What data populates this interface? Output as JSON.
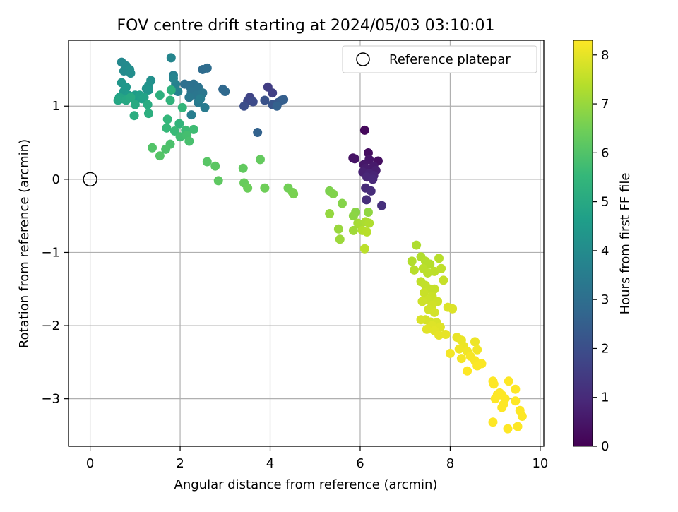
{
  "chart_data": {
    "type": "scatter",
    "title": "FOV centre drift starting at 2024/05/03 03:10:01",
    "xlabel": "Angular distance from reference (arcmin)",
    "ylabel": "Rotation from reference (arcmin)",
    "xlim": [
      -0.48,
      10.08
    ],
    "ylim": [
      -3.65,
      1.9
    ],
    "xticks": [
      0,
      2,
      4,
      6,
      8,
      10
    ],
    "xtick_labels": [
      "0",
      "2",
      "4",
      "6",
      "8",
      "10"
    ],
    "yticks": [
      1,
      0,
      -1,
      -2,
      -3
    ],
    "ytick_labels": [
      "1",
      "0",
      "−1",
      "−2",
      "−3"
    ],
    "grid": true,
    "legend": {
      "position": "top-right",
      "entries": [
        {
          "label": "Reference platepar",
          "marker": "open-circle"
        }
      ]
    },
    "reference_point": {
      "x": 0,
      "y": 0
    },
    "colorbar": {
      "label": "Hours from first FF file",
      "colormap": "viridis",
      "range": [
        0,
        8.3
      ],
      "ticks": [
        0,
        1,
        2,
        3,
        4,
        5,
        6,
        7,
        8
      ],
      "tick_labels": [
        "0",
        "1",
        "2",
        "3",
        "4",
        "5",
        "6",
        "7",
        "8"
      ],
      "stops": [
        "#440154",
        "#482878",
        "#3e4989",
        "#31688e",
        "#26828e",
        "#1f9e89",
        "#35b779",
        "#6ece58",
        "#b5de2b",
        "#fde725"
      ]
    },
    "series": [
      {
        "points": [
          [
            6.1,
            0.67
          ],
          [
            6.18,
            0.36
          ],
          [
            6.4,
            0.25
          ],
          [
            5.84,
            0.29
          ],
          [
            5.88,
            0.28
          ],
          [
            6.2,
            0.27
          ],
          [
            6.08,
            0.2
          ],
          [
            6.3,
            0.18
          ],
          [
            6.12,
            0.15
          ],
          [
            6.35,
            0.12
          ],
          [
            6.06,
            0.1
          ],
          [
            6.2,
            0.08
          ],
          [
            6.3,
            0.05
          ],
          [
            6.15,
            0.03
          ],
          [
            6.28,
            0.0
          ],
          [
            6.12,
            -0.12
          ],
          [
            6.24,
            -0.16
          ],
          [
            6.14,
            -0.28
          ],
          [
            6.48,
            -0.36
          ]
        ],
        "hours": [
          0.2,
          0.3,
          0.35,
          0.4,
          0.45,
          0.5,
          0.55,
          0.6,
          0.65,
          0.7,
          0.75,
          0.8,
          0.85,
          0.9,
          0.95,
          1.0,
          1.05,
          1.1,
          1.15
        ]
      },
      {
        "points": [
          [
            3.95,
            1.26
          ],
          [
            4.05,
            1.18
          ],
          [
            3.55,
            1.12
          ],
          [
            3.5,
            1.07
          ],
          [
            3.62,
            1.06
          ],
          [
            3.42,
            1.0
          ],
          [
            3.88,
            1.08
          ],
          [
            4.05,
            1.02
          ],
          [
            4.18,
            1.05
          ],
          [
            4.25,
            1.08
          ],
          [
            4.3,
            1.09
          ],
          [
            4.15,
            1.0
          ],
          [
            3.72,
            0.64
          ]
        ],
        "hours": [
          1.5,
          1.6,
          1.7,
          1.8,
          1.9,
          2.0,
          2.1,
          2.2,
          2.3,
          2.4,
          2.5,
          2.55,
          2.6
        ]
      },
      {
        "points": [
          [
            2.95,
            1.23
          ],
          [
            3.0,
            1.2
          ],
          [
            2.5,
            1.5
          ],
          [
            2.6,
            1.52
          ],
          [
            2.1,
            1.3
          ],
          [
            2.2,
            1.28
          ],
          [
            2.3,
            1.3
          ],
          [
            2.4,
            1.26
          ],
          [
            2.25,
            1.2
          ],
          [
            2.35,
            1.15
          ],
          [
            2.5,
            1.18
          ],
          [
            2.2,
            1.12
          ],
          [
            2.4,
            1.05
          ],
          [
            2.55,
            0.98
          ],
          [
            2.45,
            1.1
          ],
          [
            2.25,
            0.88
          ],
          [
            1.85,
            1.42
          ],
          [
            1.9,
            1.3
          ],
          [
            1.95,
            1.2
          ],
          [
            1.85,
            1.38
          ],
          [
            1.8,
            1.66
          ]
        ],
        "hours": [
          2.8,
          2.85,
          2.9,
          2.95,
          3.0,
          3.05,
          3.1,
          3.15,
          3.2,
          3.25,
          3.3,
          3.35,
          3.4,
          3.45,
          3.5,
          3.55,
          3.6,
          3.65,
          3.7,
          3.75,
          3.8
        ]
      },
      {
        "points": [
          [
            0.7,
            1.6
          ],
          [
            0.8,
            1.55
          ],
          [
            0.75,
            1.48
          ],
          [
            0.88,
            1.5
          ],
          [
            0.9,
            1.45
          ],
          [
            1.35,
            1.35
          ],
          [
            1.3,
            1.28
          ],
          [
            1.25,
            1.24
          ],
          [
            1.3,
            1.22
          ],
          [
            0.7,
            1.32
          ],
          [
            0.8,
            1.26
          ],
          [
            0.75,
            1.2
          ],
          [
            0.85,
            1.15
          ],
          [
            1.0,
            1.15
          ],
          [
            1.05,
            1.1
          ],
          [
            1.1,
            1.15
          ],
          [
            1.15,
            1.1
          ],
          [
            1.2,
            1.12
          ],
          [
            0.65,
            1.12
          ],
          [
            0.72,
            1.1
          ],
          [
            0.62,
            1.08
          ],
          [
            0.8,
            1.08
          ],
          [
            0.9,
            1.12
          ],
          [
            1.0,
            1.02
          ],
          [
            1.28,
            1.02
          ],
          [
            0.98,
            0.87
          ],
          [
            1.3,
            0.9
          ],
          [
            1.55,
            1.15
          ]
        ],
        "hours": [
          3.9,
          3.95,
          4.0,
          4.05,
          4.1,
          4.15,
          4.2,
          4.25,
          4.3,
          4.35,
          4.4,
          4.45,
          4.5,
          4.55,
          4.6,
          4.65,
          4.7,
          4.75,
          4.8,
          4.85,
          4.9,
          4.95,
          5.0,
          5.05,
          5.1,
          5.15,
          5.2,
          5.25
        ]
      },
      {
        "points": [
          [
            1.8,
            1.22
          ],
          [
            1.78,
            1.08
          ],
          [
            1.98,
            0.76
          ],
          [
            2.05,
            0.98
          ],
          [
            1.72,
            0.82
          ],
          [
            1.7,
            0.7
          ],
          [
            1.88,
            0.66
          ],
          [
            2.12,
            0.67
          ],
          [
            2.3,
            0.68
          ],
          [
            2.0,
            0.58
          ],
          [
            2.15,
            0.6
          ],
          [
            2.2,
            0.52
          ],
          [
            1.78,
            0.48
          ],
          [
            1.68,
            0.41
          ],
          [
            1.38,
            0.43
          ],
          [
            1.55,
            0.32
          ],
          [
            2.6,
            0.24
          ],
          [
            2.78,
            0.18
          ],
          [
            2.85,
            -0.02
          ],
          [
            3.4,
            0.15
          ],
          [
            3.78,
            0.27
          ],
          [
            3.42,
            -0.05
          ],
          [
            3.5,
            -0.12
          ],
          [
            3.88,
            -0.12
          ]
        ],
        "hours": [
          5.3,
          5.35,
          5.4,
          5.45,
          5.5,
          5.55,
          5.6,
          5.65,
          5.7,
          5.75,
          5.8,
          5.85,
          5.9,
          5.95,
          6.0,
          6.05,
          6.1,
          6.15,
          6.2,
          6.25,
          6.3,
          6.35,
          6.4,
          6.45
        ]
      },
      {
        "points": [
          [
            4.4,
            -0.12
          ],
          [
            4.5,
            -0.18
          ],
          [
            4.52,
            -0.2
          ],
          [
            5.32,
            -0.16
          ],
          [
            5.4,
            -0.2
          ],
          [
            5.6,
            -0.33
          ],
          [
            5.9,
            -0.45
          ],
          [
            5.85,
            -0.5
          ],
          [
            6.18,
            -0.45
          ],
          [
            5.32,
            -0.47
          ],
          [
            5.52,
            -0.68
          ],
          [
            5.55,
            -0.82
          ],
          [
            5.85,
            -0.7
          ],
          [
            5.95,
            -0.6
          ],
          [
            6.0,
            -0.62
          ],
          [
            6.12,
            -0.58
          ],
          [
            6.2,
            -0.6
          ],
          [
            6.05,
            -0.7
          ],
          [
            6.15,
            -0.72
          ],
          [
            6.1,
            -0.95
          ]
        ],
        "hours": [
          6.5,
          6.55,
          6.6,
          6.65,
          6.7,
          6.75,
          6.8,
          6.85,
          6.9,
          6.95,
          7.0,
          7.05,
          7.1,
          7.15,
          7.2,
          7.25,
          7.3,
          7.35,
          7.4,
          7.45
        ]
      },
      {
        "points": [
          [
            7.25,
            -0.9
          ],
          [
            7.35,
            -1.06
          ],
          [
            7.15,
            -1.12
          ],
          [
            7.45,
            -1.12
          ],
          [
            7.55,
            -1.16
          ],
          [
            7.75,
            -1.08
          ],
          [
            7.2,
            -1.24
          ],
          [
            7.4,
            -1.22
          ],
          [
            7.5,
            -1.28
          ],
          [
            7.65,
            -1.26
          ],
          [
            7.8,
            -1.22
          ],
          [
            7.35,
            -1.4
          ],
          [
            7.45,
            -1.45
          ],
          [
            7.55,
            -1.5
          ],
          [
            7.65,
            -1.5
          ],
          [
            7.85,
            -1.38
          ],
          [
            7.42,
            -1.55
          ],
          [
            7.6,
            -1.6
          ],
          [
            7.5,
            -1.65
          ],
          [
            7.72,
            -1.67
          ],
          [
            7.38,
            -1.67
          ],
          [
            7.6,
            -1.72
          ],
          [
            7.52,
            -1.78
          ],
          [
            7.65,
            -1.82
          ],
          [
            7.45,
            -1.92
          ],
          [
            7.55,
            -1.95
          ],
          [
            7.7,
            -1.96
          ],
          [
            7.35,
            -1.92
          ],
          [
            7.95,
            -1.75
          ],
          [
            8.05,
            -1.77
          ],
          [
            7.6,
            -2.0
          ],
          [
            7.78,
            -2.02
          ],
          [
            7.48,
            -2.05
          ],
          [
            7.65,
            -2.07
          ]
        ],
        "hours": [
          7.3,
          7.32,
          7.34,
          7.36,
          7.38,
          7.4,
          7.42,
          7.44,
          7.46,
          7.48,
          7.5,
          7.52,
          7.54,
          7.56,
          7.58,
          7.6,
          7.62,
          7.64,
          7.66,
          7.68,
          7.7,
          7.72,
          7.74,
          7.76,
          7.78,
          7.8,
          7.82,
          7.84,
          7.86,
          7.88,
          7.9,
          7.92,
          7.94,
          7.96
        ]
      },
      {
        "points": [
          [
            7.75,
            -2.13
          ],
          [
            7.9,
            -2.12
          ],
          [
            8.15,
            -2.16
          ],
          [
            8.25,
            -2.2
          ],
          [
            8.3,
            -2.28
          ],
          [
            8.55,
            -2.22
          ],
          [
            8.2,
            -2.32
          ],
          [
            8.38,
            -2.35
          ],
          [
            8.6,
            -2.33
          ],
          [
            8.0,
            -2.38
          ],
          [
            8.25,
            -2.45
          ],
          [
            8.45,
            -2.42
          ],
          [
            8.55,
            -2.48
          ],
          [
            8.7,
            -2.52
          ],
          [
            8.6,
            -2.55
          ],
          [
            8.38,
            -2.62
          ]
        ],
        "hours": [
          8.0,
          8.02,
          8.04,
          8.06,
          8.08,
          8.1,
          8.12,
          8.14,
          8.16,
          8.18,
          8.2,
          8.22,
          8.24,
          8.26,
          8.28,
          8.3
        ]
      },
      {
        "points": [
          [
            9.3,
            -2.76
          ],
          [
            8.95,
            -2.76
          ],
          [
            8.97,
            -2.8
          ],
          [
            9.1,
            -2.92
          ],
          [
            9.05,
            -2.94
          ],
          [
            9.15,
            -2.95
          ],
          [
            9.0,
            -3.0
          ],
          [
            9.22,
            -3.0
          ],
          [
            9.45,
            -2.87
          ],
          [
            9.45,
            -3.03
          ],
          [
            9.18,
            -3.08
          ],
          [
            9.15,
            -3.12
          ],
          [
            9.55,
            -3.16
          ],
          [
            9.6,
            -3.24
          ],
          [
            8.95,
            -3.32
          ],
          [
            9.5,
            -3.38
          ],
          [
            9.28,
            -3.41
          ]
        ],
        "hours": [
          8.3,
          8.3,
          8.3,
          8.3,
          8.3,
          8.3,
          8.3,
          8.3,
          8.3,
          8.3,
          8.3,
          8.3,
          8.3,
          8.3,
          8.3,
          8.3,
          8.3
        ]
      }
    ]
  }
}
